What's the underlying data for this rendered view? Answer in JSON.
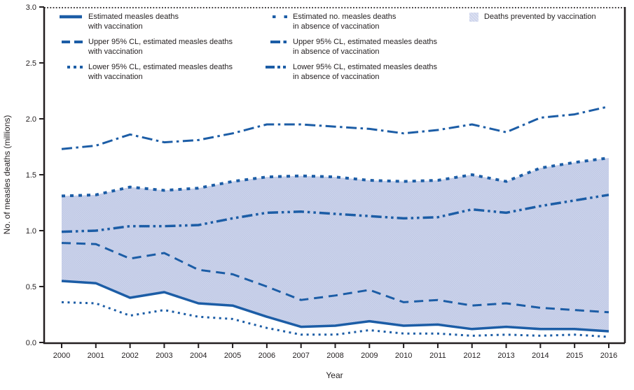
{
  "figure": {
    "y_axis_label": "No. of measles deaths (millions)",
    "x_axis_label": "Year"
  },
  "colors": {
    "line": "#1c5da6",
    "area_fill": "#cdd4ec",
    "area_texture": "#bfc9e4",
    "axis": "#231f20",
    "text": "#231f20"
  },
  "legend": {
    "items": [
      {
        "style": "solid",
        "line1": "Estimated measles deaths",
        "line2": "with vaccination"
      },
      {
        "style": "dashed",
        "line1": "Upper 95% CL, estimated measles deaths",
        "line2": "with vaccination"
      },
      {
        "style": "dotted",
        "line1": "Lower 95% CL, estimated measles deaths",
        "line2": "with vaccination"
      },
      {
        "style": "square-dash",
        "line1": "Estimated no. measles deaths",
        "line2": "in absence of vaccination"
      },
      {
        "style": "dash-dot",
        "line1": "Upper 95% CL, estimated measles deaths",
        "line2": "in absence of vaccination"
      },
      {
        "style": "dash-dot-dot",
        "line1": "Lower 95% CL, estimated measles deaths",
        "line2": "in absence of vaccination"
      },
      {
        "style": "area",
        "line1": "Deaths prevented by vaccination",
        "line2": ""
      }
    ]
  },
  "chart_data": {
    "type": "line",
    "title": "",
    "xlabel": "Year",
    "ylabel": "No. of measles deaths (millions)",
    "x": [
      2000,
      2001,
      2002,
      2003,
      2004,
      2005,
      2006,
      2007,
      2008,
      2009,
      2010,
      2011,
      2012,
      2013,
      2014,
      2015,
      2016
    ],
    "ylim": [
      0,
      3.0
    ],
    "yticks": [
      0.0,
      0.5,
      1.0,
      1.5,
      2.0,
      2.5,
      3.0
    ],
    "grid": false,
    "legend_position": "top",
    "units": "millions of deaths",
    "series": [
      {
        "name": "Estimated measles deaths with vaccination",
        "style": "solid",
        "values": [
          0.55,
          0.53,
          0.4,
          0.45,
          0.35,
          0.33,
          0.23,
          0.14,
          0.15,
          0.19,
          0.15,
          0.16,
          0.12,
          0.14,
          0.12,
          0.12,
          0.1
        ]
      },
      {
        "name": "Upper 95% CL, estimated measles deaths with vaccination",
        "style": "dashed",
        "values": [
          0.89,
          0.88,
          0.75,
          0.8,
          0.65,
          0.61,
          0.5,
          0.38,
          0.42,
          0.47,
          0.36,
          0.38,
          0.33,
          0.35,
          0.31,
          0.29,
          0.27
        ]
      },
      {
        "name": "Lower 95% CL, estimated measles deaths with vaccination",
        "style": "dotted",
        "values": [
          0.36,
          0.35,
          0.24,
          0.29,
          0.23,
          0.21,
          0.13,
          0.07,
          0.07,
          0.11,
          0.08,
          0.08,
          0.06,
          0.07,
          0.06,
          0.07,
          0.05
        ]
      },
      {
        "name": "Estimated no. measles deaths in absence of vaccination",
        "style": "square-dash",
        "values": [
          1.31,
          1.32,
          1.39,
          1.36,
          1.38,
          1.44,
          1.48,
          1.49,
          1.48,
          1.45,
          1.44,
          1.45,
          1.5,
          1.44,
          1.56,
          1.61,
          1.65
        ]
      },
      {
        "name": "Upper 95% CL, estimated measles deaths in absence of vaccination",
        "style": "dash-dot",
        "values": [
          1.73,
          1.76,
          1.86,
          1.79,
          1.81,
          1.87,
          1.95,
          1.95,
          1.93,
          1.91,
          1.87,
          1.9,
          1.95,
          1.88,
          2.01,
          2.04,
          2.11
        ]
      },
      {
        "name": "Lower 95% CL, estimated measles deaths in absence of vaccination",
        "style": "dash-dot-dot",
        "values": [
          0.99,
          1.0,
          1.04,
          1.04,
          1.05,
          1.11,
          1.16,
          1.17,
          1.15,
          1.13,
          1.11,
          1.12,
          1.19,
          1.16,
          1.22,
          1.27,
          1.32
        ]
      }
    ],
    "area": {
      "label": "Deaths prevented by vaccination",
      "between": [
        "Estimated no. measles deaths in absence of vaccination",
        "Estimated measles deaths with vaccination"
      ]
    }
  }
}
